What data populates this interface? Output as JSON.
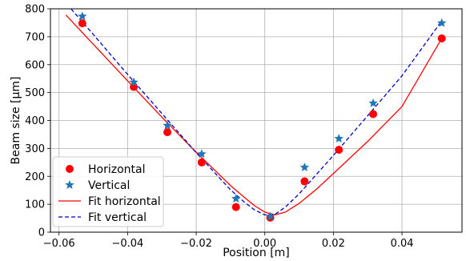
{
  "chart_data": {
    "type": "scatter",
    "xlabel": "Position [m]",
    "ylabel": "Beam size [μm]",
    "xlim": [
      -0.0625,
      0.0575
    ],
    "ylim": [
      0,
      800
    ],
    "xticks": [
      -0.06,
      -0.04,
      -0.02,
      0.0,
      0.02,
      0.04
    ],
    "xtick_labels": [
      "−0.06",
      "−0.04",
      "−0.02",
      "0.00",
      "0.02",
      "0.04"
    ],
    "yticks": [
      0,
      100,
      200,
      300,
      400,
      500,
      600,
      700,
      800
    ],
    "ytick_labels": [
      "0",
      "100",
      "200",
      "300",
      "400",
      "500",
      "600",
      "700",
      "800"
    ],
    "grid": true,
    "legend_position": "lower-left",
    "series": [
      {
        "name": "Horizontal",
        "kind": "scatter",
        "marker": "circle",
        "color": "#ff0000",
        "x": [
          -0.0532,
          -0.0382,
          -0.0284,
          -0.0184,
          -0.0084,
          0.0016,
          0.0116,
          0.0216,
          0.0316,
          0.0516
        ],
        "y": [
          748,
          520,
          358,
          250,
          90,
          52,
          182,
          295,
          423,
          694
        ]
      },
      {
        "name": "Vertical",
        "kind": "scatter",
        "marker": "star",
        "color": "#1f77b4",
        "x": [
          -0.0532,
          -0.0382,
          -0.0284,
          -0.0184,
          -0.0084,
          0.0016,
          0.0116,
          0.0216,
          0.0316,
          0.0516
        ],
        "y": [
          773,
          537,
          382,
          280,
          120,
          56,
          232,
          335,
          462,
          749
        ]
      },
      {
        "name": "Fit horizontal",
        "kind": "line",
        "style": "solid",
        "color": "#ff0000",
        "x": [
          -0.058,
          -0.05,
          -0.04,
          -0.03,
          -0.02,
          -0.015,
          -0.01,
          -0.006,
          -0.003,
          0.0,
          0.003,
          0.006,
          0.01,
          0.015,
          0.02,
          0.03,
          0.04,
          0.0516
        ],
        "y": [
          778,
          673,
          542,
          412,
          286,
          227,
          167,
          125,
          95,
          72,
          62,
          72,
          103,
          153,
          210,
          325,
          450,
          694
        ]
      },
      {
        "name": "Fit vertical",
        "kind": "line",
        "style": "dashed",
        "color": "#0000cc",
        "x": [
          -0.0565,
          -0.05,
          -0.04,
          -0.03,
          -0.02,
          -0.015,
          -0.01,
          -0.006,
          -0.003,
          0.0,
          0.003,
          0.006,
          0.01,
          0.015,
          0.02,
          0.03,
          0.04,
          0.0516
        ],
        "y": [
          800,
          708,
          565,
          425,
          285,
          218,
          152,
          108,
          80,
          62,
          64,
          90,
          137,
          206,
          275,
          417,
          560,
          757
        ]
      }
    ]
  }
}
